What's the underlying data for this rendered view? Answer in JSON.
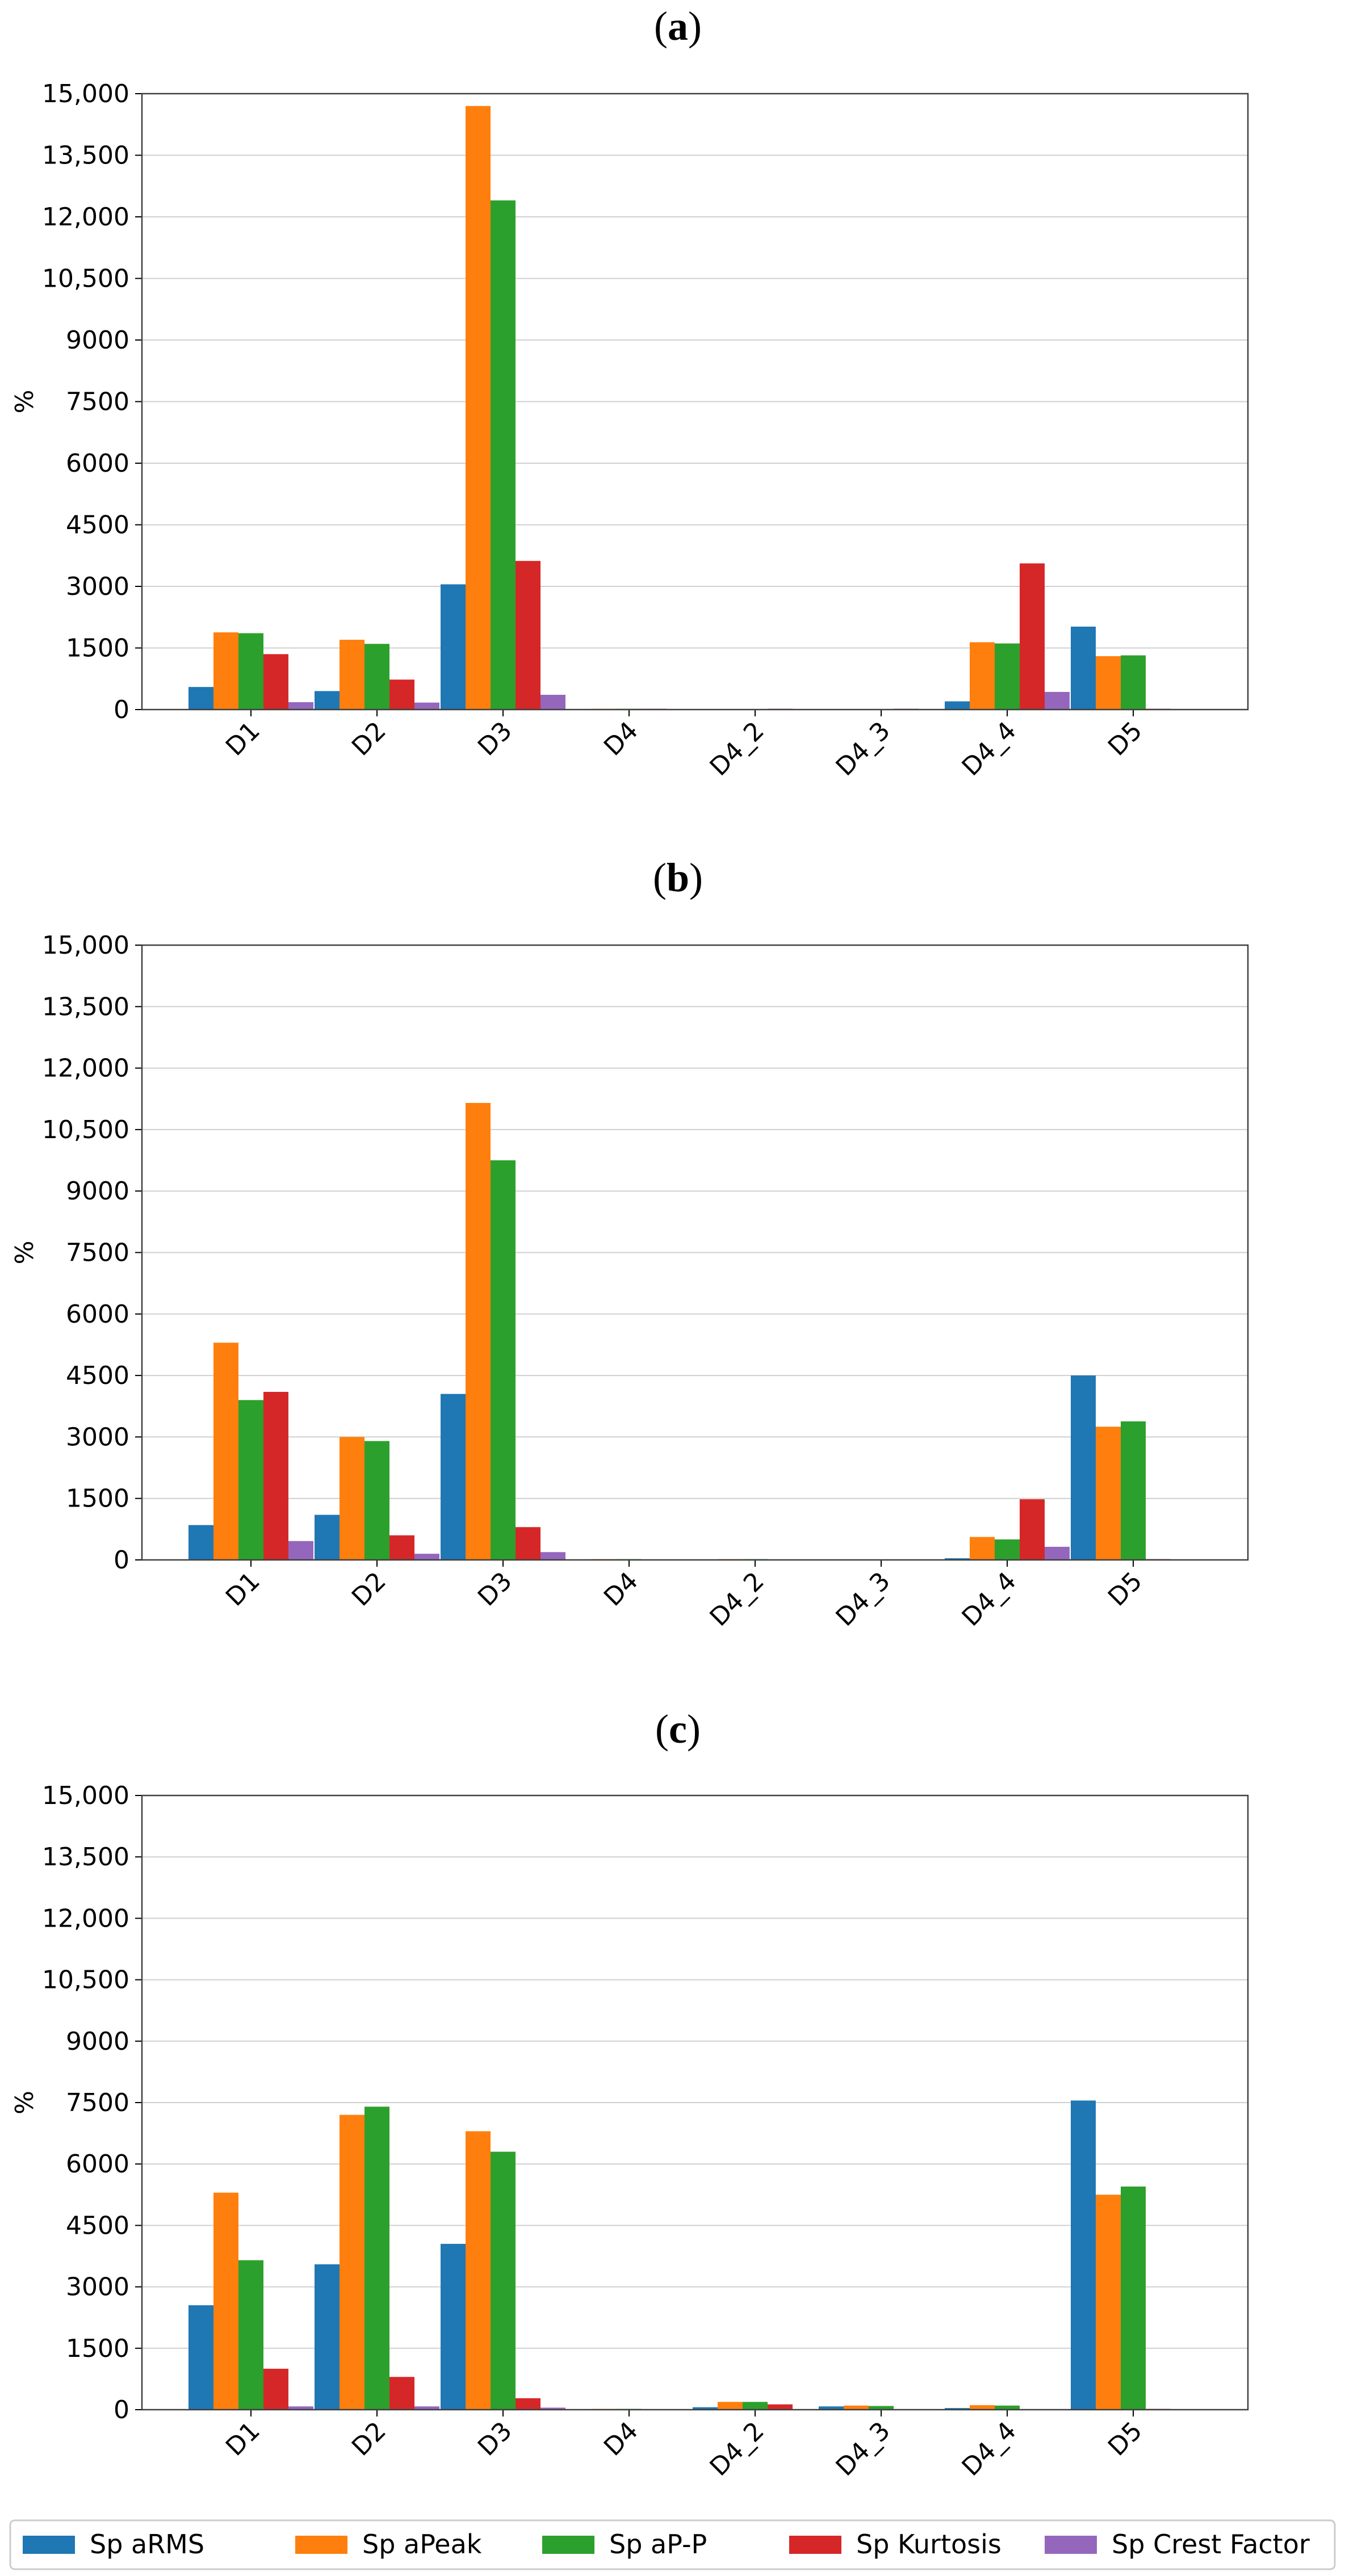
{
  "chart_data": [
    {
      "type": "bar",
      "title": "(a)",
      "title_letter": "a",
      "ylabel": "%",
      "ylim": [
        0,
        15000
      ],
      "yticks": [
        "0",
        "1500",
        "3000",
        "4500",
        "6000",
        "7500",
        "9000",
        "10,500",
        "12,000",
        "13,500",
        "15,000"
      ],
      "categories": [
        "D1",
        "D2",
        "D3",
        "D4",
        "D4_2",
        "D4_3",
        "D4_4",
        "D5"
      ],
      "grid": true,
      "series": [
        {
          "name": "Sp aRMS",
          "values": [
            550,
            450,
            3050,
            0,
            0,
            0,
            200,
            2020
          ]
        },
        {
          "name": "Sp aPeak",
          "values": [
            1880,
            1700,
            14700,
            20,
            0,
            0,
            1640,
            1300
          ]
        },
        {
          "name": "Sp aP-P",
          "values": [
            1860,
            1600,
            12400,
            20,
            0,
            0,
            1610,
            1320
          ]
        },
        {
          "name": "Sp Kurtosis",
          "values": [
            1350,
            730,
            3620,
            20,
            20,
            20,
            3560,
            20
          ]
        },
        {
          "name": "Sp Crest Factor",
          "values": [
            180,
            170,
            360,
            0,
            0,
            0,
            430,
            0
          ]
        }
      ]
    },
    {
      "type": "bar",
      "title": "(b)",
      "title_letter": "b",
      "ylabel": "%",
      "ylim": [
        0,
        15000
      ],
      "yticks": [
        "0",
        "1500",
        "3000",
        "4500",
        "6000",
        "7500",
        "9000",
        "10,500",
        "12,000",
        "13,500",
        "15,000"
      ],
      "categories": [
        "D1",
        "D2",
        "D3",
        "D4",
        "D4_2",
        "D4_3",
        "D4_4",
        "D5"
      ],
      "grid": true,
      "series": [
        {
          "name": "Sp aRMS",
          "values": [
            850,
            1100,
            4050,
            0,
            0,
            0,
            40,
            4500
          ]
        },
        {
          "name": "Sp aPeak",
          "values": [
            5300,
            3000,
            11150,
            20,
            20,
            0,
            560,
            3250
          ]
        },
        {
          "name": "Sp aP-P",
          "values": [
            3900,
            2900,
            9750,
            20,
            20,
            0,
            500,
            3380
          ]
        },
        {
          "name": "Sp Kurtosis",
          "values": [
            4100,
            600,
            800,
            0,
            0,
            0,
            1480,
            20
          ]
        },
        {
          "name": "Sp Crest Factor",
          "values": [
            460,
            150,
            190,
            0,
            0,
            0,
            320,
            0
          ]
        }
      ]
    },
    {
      "type": "bar",
      "title": "(c)",
      "title_letter": "c",
      "ylabel": "%",
      "ylim": [
        0,
        15000
      ],
      "yticks": [
        "0",
        "1500",
        "3000",
        "4500",
        "6000",
        "7500",
        "9000",
        "10,500",
        "12,000",
        "13,500",
        "15,000"
      ],
      "categories": [
        "D1",
        "D2",
        "D3",
        "D4",
        "D4_2",
        "D4_3",
        "D4_4",
        "D5"
      ],
      "grid": true,
      "series": [
        {
          "name": "Sp aRMS",
          "values": [
            2550,
            3550,
            4050,
            0,
            60,
            80,
            40,
            7550
          ]
        },
        {
          "name": "Sp aPeak",
          "values": [
            5300,
            7200,
            6800,
            20,
            190,
            100,
            110,
            5250
          ]
        },
        {
          "name": "Sp aP-P",
          "values": [
            3650,
            7400,
            6300,
            20,
            190,
            90,
            100,
            5450
          ]
        },
        {
          "name": "Sp Kurtosis",
          "values": [
            1000,
            800,
            280,
            0,
            130,
            0,
            0,
            20
          ]
        },
        {
          "name": "Sp Crest Factor",
          "values": [
            80,
            80,
            50,
            0,
            0,
            0,
            0,
            0
          ]
        }
      ]
    }
  ],
  "legend": {
    "placement": "bottom",
    "items": [
      {
        "label": "Sp aRMS",
        "color": "#1f77b4"
      },
      {
        "label": "Sp aPeak",
        "color": "#ff7f0e"
      },
      {
        "label": "Sp aP-P",
        "color": "#2ca02c"
      },
      {
        "label": "Sp Kurtosis",
        "color": "#d62728"
      },
      {
        "label": "Sp Crest Factor",
        "color": "#9467bd"
      }
    ]
  }
}
